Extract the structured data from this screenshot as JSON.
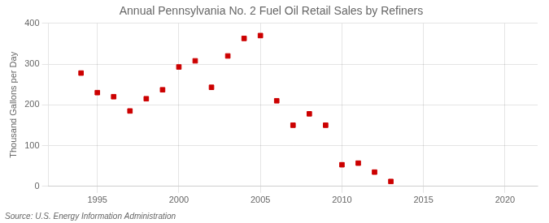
{
  "chart_data": {
    "type": "scatter",
    "title": "Annual Pennsylvania No. 2 Fuel Oil Retail Sales by Refiners",
    "y_label": "Thousand Gallons per Day",
    "annotations": [
      "Source: U.S. Energy Information Administration"
    ],
    "x": [
      1994,
      1995,
      1996,
      1997,
      1998,
      1999,
      2000,
      2001,
      2002,
      2003,
      2004,
      2005,
      2006,
      2007,
      2008,
      2009,
      2010,
      2011,
      2012,
      2013
    ],
    "values": [
      278,
      230,
      220,
      185,
      215,
      237,
      293,
      308,
      243,
      320,
      363,
      370,
      210,
      150,
      178,
      150,
      53,
      57,
      35,
      12
    ],
    "color": "#cc0000",
    "marker": "square",
    "xlim": [
      1992,
      2022
    ],
    "ylim": [
      0,
      400
    ],
    "xticks": [
      1995,
      2000,
      2005,
      2010,
      2015,
      2020
    ],
    "yticks": [
      0,
      100,
      200,
      300,
      400
    ],
    "grid": true
  }
}
